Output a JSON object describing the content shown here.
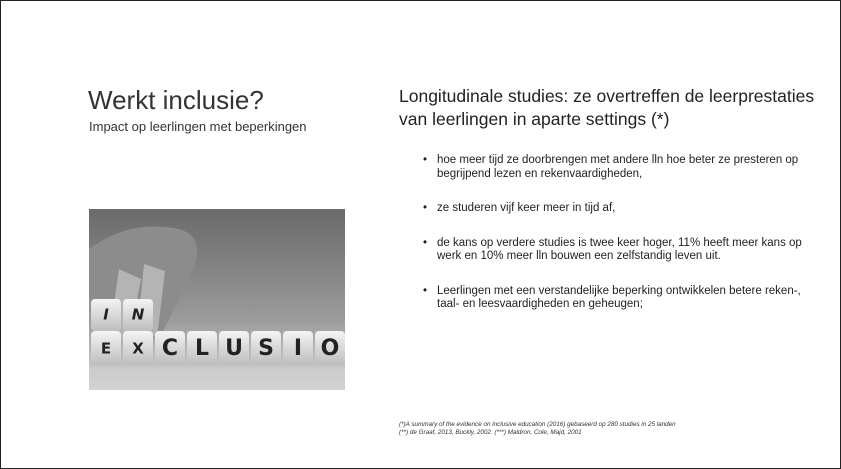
{
  "slide": {
    "title": "Werkt inclusie?",
    "subtitle": "Impact op leerlingen met beperkingen",
    "heading": "Longitudinale studies: ze overtreffen de leerprestaties van leerlingen in aparte settings (*)",
    "bullets": [
      "hoe meer tijd ze doorbrengen met andere lln hoe beter ze presteren op begrijpend lezen en rekenvaardigheden,",
      "ze studeren vijf keer meer in tijd af,",
      "de kans op verdere studies is twee keer hoger, 11% heeft meer kans op werk en 10% meer lln bouwen een zelfstandig leven uit.",
      "Leerlingen met een verstandelijke beperking ontwikkelen betere reken-, taal- en leesvaardigheden en geheugen;"
    ],
    "footnotes": [
      "(*)A summary of the evidence on inclusive education (2016) gebaseerd op 280 studies in 25 landen",
      "(**) de Graaf, 2013, Buckly, 2002. (***) Maldron, Cole, Majd, 2001"
    ],
    "image": {
      "top_letters": [
        "I",
        "N"
      ],
      "bottom_letters": [
        "E",
        "X",
        "C",
        "L",
        "U",
        "S",
        "I",
        "O"
      ]
    }
  }
}
